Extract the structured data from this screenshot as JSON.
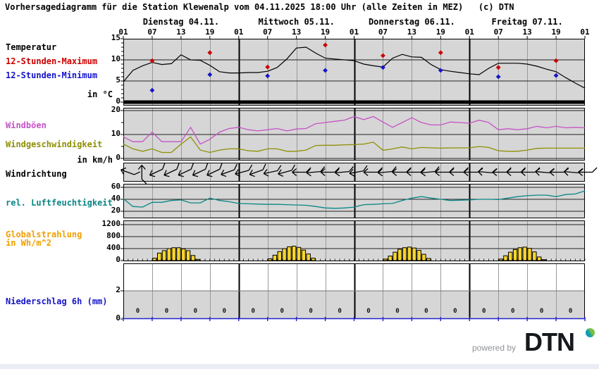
{
  "title": "Vorhersagediagramm für die Station Klewenalp vom 04.11.2025 18:00 Uhr (alle Zeiten in MEZ)   (c) DTN",
  "axis": {
    "days": [
      "Dienstag 04.11.",
      "Mittwoch 05.11.",
      "Donnerstag 06.11.",
      "Freitag 07.11."
    ],
    "hour_ticks": [
      "01",
      "07",
      "13",
      "19"
    ],
    "edge_tick": "01"
  },
  "panel_labels": {
    "temperature": "Temperatur",
    "temp_max": "12-Stunden-Maximum",
    "temp_min": "12-Stunden-Minimum",
    "temp_unit": "in °C",
    "gusts": "Windböen",
    "wind_speed": "Windgeschwindigkeit",
    "wind_unit": "in km/h",
    "wind_dir": "Windrichtung",
    "humidity": "rel. Luftfeuchtigkeit",
    "radiation_1": "Globalstrahlung",
    "radiation_2": "in Wh/m^2",
    "precip": "Niederschlag 6h (mm)"
  },
  "colors": {
    "plot_bg": "#d6d6d6",
    "grid_minor": "#9a9a9a",
    "grid_day": "#000000",
    "temp_line": "#000000",
    "max_marker": "#cc0000",
    "min_marker": "#1414cc",
    "gusts": "#c653c6",
    "wind_speed": "#8f8f05",
    "humidity": "#0b8686",
    "radiation_label": "#efa000",
    "radiation_bar": "#f7d52e",
    "precip_label": "#1515c8",
    "precip_baseline": "#2222cc",
    "footer_text": "#8f9296",
    "bottom_strip": "#e9ecf4"
  },
  "footer": {
    "powered_by": "powered by",
    "brand": "DTN"
  },
  "chart_data": [
    {
      "id": "temperature",
      "type": "line",
      "title": "Temperatur",
      "ylabel": "in °C",
      "ylim": [
        0,
        15
      ],
      "yticks": [
        0,
        5,
        10,
        15
      ],
      "x_start": "Tue 01:00",
      "x_step_hours": 2,
      "grid": true,
      "series": [
        {
          "name": "Temperatur",
          "color": "#000000",
          "values": [
            4.8,
            7.5,
            8.6,
            9.4,
            8.9,
            9.1,
            11.2,
            10.0,
            9.9,
            8.7,
            7.2,
            6.9,
            6.9,
            7.0,
            7.0,
            7.3,
            8.2,
            10.2,
            12.8,
            13.0,
            11.6,
            10.4,
            10.2,
            10.0,
            9.8,
            9.0,
            8.6,
            8.3,
            10.4,
            11.3,
            10.7,
            10.6,
            8.9,
            7.7,
            7.3,
            7.0,
            6.7,
            6.5,
            8.0,
            9.2,
            9.2,
            9.2,
            9.0,
            8.5,
            7.8,
            7.2,
            5.8,
            4.5,
            3.3
          ]
        }
      ],
      "markers": {
        "max": {
          "name": "12-Stunden-Maximum",
          "color": "#cc0000",
          "points": [
            {
              "day": 0,
              "hour": 7,
              "value": 9.8
            },
            {
              "day": 0,
              "hour": 19,
              "value": 11.7
            },
            {
              "day": 1,
              "hour": 7,
              "value": 8.3
            },
            {
              "day": 1,
              "hour": 19,
              "value": 13.5
            },
            {
              "day": 2,
              "hour": 7,
              "value": 11.0
            },
            {
              "day": 2,
              "hour": 19,
              "value": 11.7
            },
            {
              "day": 3,
              "hour": 7,
              "value": 8.2
            },
            {
              "day": 3,
              "hour": 19,
              "value": 9.8
            }
          ]
        },
        "min": {
          "name": "12-Stunden-Minimum",
          "color": "#1414cc",
          "points": [
            {
              "day": 0,
              "hour": 7,
              "value": 2.8
            },
            {
              "day": 0,
              "hour": 19,
              "value": 6.5
            },
            {
              "day": 1,
              "hour": 7,
              "value": 6.2
            },
            {
              "day": 1,
              "hour": 19,
              "value": 7.5
            },
            {
              "day": 2,
              "hour": 7,
              "value": 8.2
            },
            {
              "day": 2,
              "hour": 19,
              "value": 7.5
            },
            {
              "day": 3,
              "hour": 7,
              "value": 6.0
            },
            {
              "day": 3,
              "hour": 19,
              "value": 6.3
            }
          ]
        }
      },
      "freezing_line_value": 0
    },
    {
      "id": "wind",
      "type": "line",
      "ylabel": "in km/h",
      "ylim": [
        0,
        21
      ],
      "yticks": [
        0,
        10,
        20
      ],
      "x_step_hours": 2,
      "series": [
        {
          "name": "Windböen",
          "color": "#c653c6",
          "values": [
            9,
            7,
            7,
            11,
            7,
            7,
            7,
            13,
            6,
            8,
            11,
            12.5,
            13,
            12,
            11.5,
            12,
            12.5,
            11.5,
            12.3,
            12.5,
            14.5,
            15,
            15.5,
            16,
            17.5,
            16.2,
            17.5,
            15.2,
            13,
            15,
            17,
            15,
            14,
            14,
            15.2,
            15,
            14.7,
            16,
            15,
            12,
            12.4,
            12,
            12.4,
            13.4,
            12.8,
            13.4,
            12.8,
            13,
            12.8
          ]
        },
        {
          "name": "Windgeschwindigkeit",
          "color": "#8f8f05",
          "values": [
            6,
            4,
            3,
            4,
            2.5,
            2.5,
            6,
            9,
            3.5,
            2.5,
            3.5,
            4,
            4,
            3.2,
            3,
            4,
            4,
            3,
            3,
            3.5,
            5.4,
            5.5,
            5.5,
            5.7,
            5.8,
            6,
            6.8,
            3.4,
            4,
            4.8,
            4,
            4.6,
            4.4,
            4.3,
            4.4,
            4.4,
            4.4,
            5,
            4.6,
            3.2,
            3,
            3,
            3.5,
            4.2,
            4.3,
            4.3,
            4.3,
            4.3,
            4.3
          ]
        }
      ]
    },
    {
      "id": "wind_direction",
      "type": "arrows",
      "title": "Windrichtung",
      "note": "angle in degrees: 0 = arrow pointing west (wind from east), positive = head tilted up, 90 = pointing north",
      "arrow_step_hours": 3,
      "angles_deg": [
        20,
        90,
        -25,
        -25,
        -25,
        -25,
        -25,
        -20,
        -15,
        -20,
        -12,
        -15,
        0,
        -5,
        0,
        -5,
        -10,
        0,
        -5,
        0,
        0,
        -5,
        0,
        0,
        0,
        5,
        0,
        0,
        0,
        5,
        0,
        5,
        0
      ]
    },
    {
      "id": "humidity",
      "type": "line",
      "title": "rel. Luftfeuchtigkeit",
      "ylim": [
        8,
        66
      ],
      "yticks": [
        20,
        40,
        60
      ],
      "x_step_hours": 2,
      "series": [
        {
          "name": "rel. Luftfeuchtigkeit",
          "color": "#0b8686",
          "values": [
            41,
            28,
            27,
            35,
            35,
            38,
            39,
            34,
            34,
            42,
            38,
            36,
            33,
            32.5,
            32,
            31.5,
            31.5,
            31,
            30.5,
            30,
            28,
            25.5,
            25,
            25.5,
            27,
            31,
            31.5,
            32.5,
            33,
            38,
            42,
            44.5,
            42,
            40,
            38,
            38.5,
            39,
            40,
            40,
            39.5,
            42,
            44.5,
            46,
            47,
            47,
            44.5,
            48,
            49,
            54
          ]
        }
      ]
    },
    {
      "id": "radiation",
      "type": "bar",
      "title": "Globalstrahlung",
      "ylabel": "in Wh/m^2",
      "ylim": [
        0,
        1340
      ],
      "yticks": [
        0,
        400,
        800,
        1200
      ],
      "bar_interval_hours": 1,
      "bars_start_hour": 7,
      "days": [
        {
          "day": "Dienstag 04.11.",
          "values": [
            80,
            250,
            330,
            400,
            430,
            430,
            390,
            330,
            170,
            40
          ]
        },
        {
          "day": "Mittwoch 05.11.",
          "values": [
            60,
            180,
            300,
            400,
            460,
            480,
            440,
            350,
            220,
            80
          ]
        },
        {
          "day": "Donnerstag 06.11.",
          "values": [
            50,
            150,
            280,
            380,
            430,
            450,
            420,
            340,
            210,
            70
          ]
        },
        {
          "day": "Freitag 07.11.",
          "values": [
            50,
            160,
            280,
            370,
            430,
            450,
            410,
            290,
            120,
            30
          ]
        }
      ]
    },
    {
      "id": "precipitation",
      "type": "bar",
      "title": "Niederschlag 6h (mm)",
      "ylim": [
        0,
        3.95
      ],
      "yticks": [
        0,
        2
      ],
      "interval_hours": 6,
      "values": [
        0,
        0,
        0,
        0,
        0,
        0,
        0,
        0,
        0,
        0,
        0,
        0,
        0,
        0,
        0,
        0
      ]
    }
  ]
}
